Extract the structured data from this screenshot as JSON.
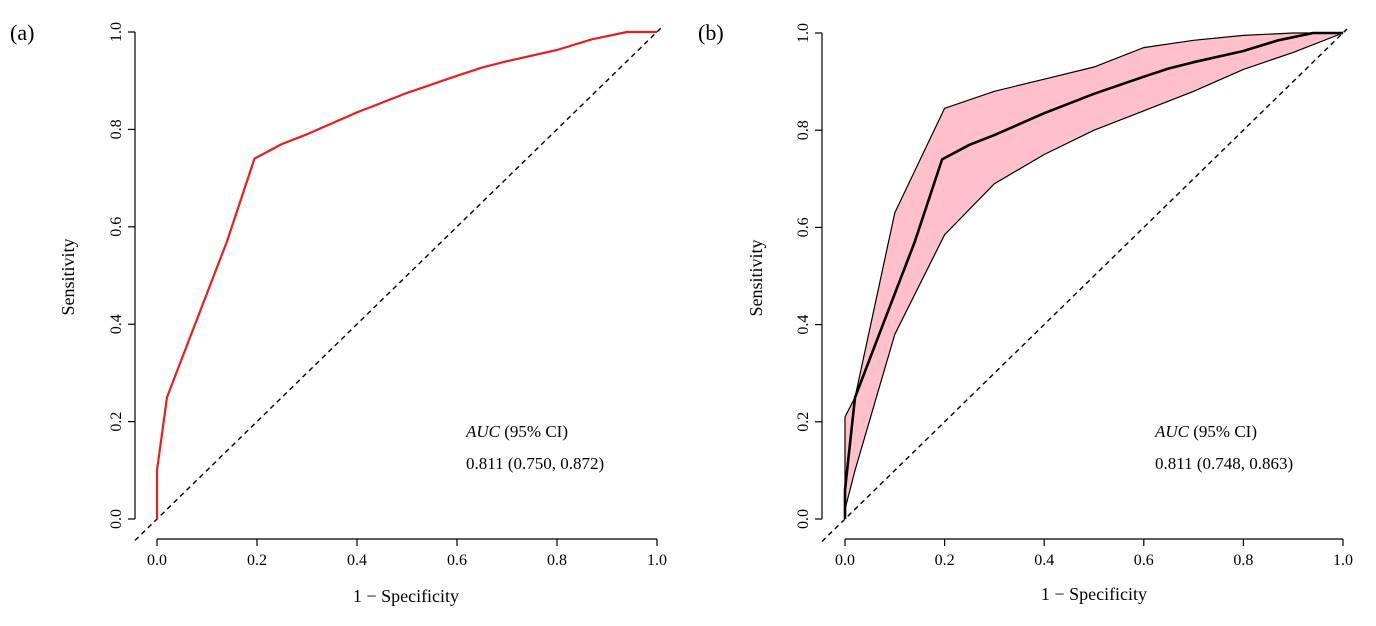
{
  "chart_data": [
    {
      "type": "line",
      "panel_label": "(a)",
      "xlabel": "1 − Specificity",
      "ylabel": "Sensitivity",
      "xlim": [
        0,
        1
      ],
      "ylim": [
        0,
        1
      ],
      "x_ticks": [
        "0.0",
        "0.2",
        "0.4",
        "0.6",
        "0.8",
        "1.0"
      ],
      "y_ticks": [
        "0.0",
        "0.2",
        "0.4",
        "0.6",
        "0.8",
        "1.0"
      ],
      "grid": false,
      "reference_line": "diagonal",
      "colors": {
        "roc": "#e8201d",
        "reference": "#000000"
      },
      "series": [
        {
          "x": [
            0,
            0,
            0.02,
            0.08,
            0.14,
            0.195,
            0.25,
            0.3,
            0.4,
            0.5,
            0.6,
            0.65,
            0.7,
            0.8,
            0.87,
            0.94,
            1.0
          ],
          "y": [
            0,
            0.1,
            0.25,
            0.41,
            0.57,
            0.74,
            0.77,
            0.79,
            0.835,
            0.875,
            0.91,
            0.927,
            0.94,
            0.963,
            0.985,
            1.0,
            1.0
          ]
        }
      ],
      "annotation": {
        "title_italic": "AUC",
        "title_rest": " (95% CI)",
        "value": "0.811 (0.750, 0.872)"
      }
    },
    {
      "type": "area",
      "panel_label": "(b)",
      "xlabel": "1 − Specificity",
      "ylabel": "Sensitivity",
      "xlim": [
        0,
        1
      ],
      "ylim": [
        0,
        1
      ],
      "x_ticks": [
        "0.0",
        "0.2",
        "0.4",
        "0.6",
        "0.8",
        "1.0"
      ],
      "y_ticks": [
        "0.0",
        "0.2",
        "0.4",
        "0.6",
        "0.8",
        "1.0"
      ],
      "grid": false,
      "reference_line": "diagonal",
      "colors": {
        "band_fill": "#ffc0cb",
        "band_edge": "#000000",
        "roc": "#000000",
        "reference": "#000000"
      },
      "series": [
        {
          "x": [
            0,
            0,
            0.02,
            0.08,
            0.14,
            0.195,
            0.25,
            0.3,
            0.4,
            0.5,
            0.6,
            0.65,
            0.7,
            0.8,
            0.87,
            0.94,
            1.0
          ],
          "y": [
            0,
            0.06,
            0.25,
            0.41,
            0.57,
            0.74,
            0.77,
            0.79,
            0.835,
            0.875,
            0.91,
            0.927,
            0.94,
            0.963,
            0.985,
            1.0,
            1.0
          ]
        }
      ],
      "ci_band": {
        "x": [
          0,
          0,
          0.02,
          0.1,
          0.2,
          0.3,
          0.4,
          0.5,
          0.6,
          0.7,
          0.8,
          0.9,
          1.0
        ],
        "upper": [
          0.04,
          0.21,
          0.25,
          0.63,
          0.845,
          0.88,
          0.905,
          0.93,
          0.97,
          0.985,
          0.995,
          1.0,
          1.0
        ],
        "lower": [
          0,
          0.02,
          0.1,
          0.38,
          0.585,
          0.69,
          0.75,
          0.8,
          0.84,
          0.88,
          0.925,
          0.96,
          1.0
        ]
      },
      "annotation": {
        "title_italic": "AUC",
        "title_rest": " (95% CI)",
        "value": "0.811 (0.748, 0.863)"
      }
    }
  ]
}
